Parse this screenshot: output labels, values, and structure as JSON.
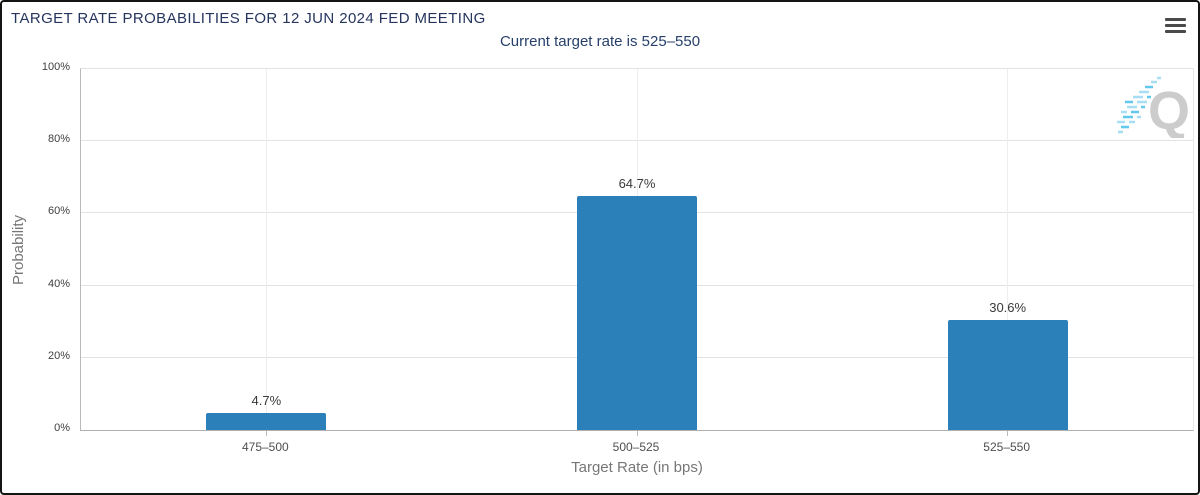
{
  "header": {
    "title": "TARGET RATE PROBABILITIES FOR 12 JUN 2024 FED MEETING",
    "menu_icon": "hamburger-menu"
  },
  "chart_data": {
    "type": "bar",
    "title": "TARGET RATE PROBABILITIES FOR 12 JUN 2024 FED MEETING",
    "subtitle": "Current target rate is 525–550",
    "categories": [
      "475–500",
      "500–525",
      "525–550"
    ],
    "values": [
      4.7,
      64.7,
      30.6
    ],
    "value_labels": [
      "4.7%",
      "64.7%",
      "30.6%"
    ],
    "xlabel": "Target Rate (in bps)",
    "ylabel": "Probability",
    "ylim": [
      0,
      100
    ],
    "yticks": [
      0,
      20,
      40,
      60,
      80,
      100
    ],
    "ytick_labels": [
      "0%",
      "20%",
      "40%",
      "60%",
      "80%",
      "100%"
    ],
    "grid": true,
    "legend_position": "none",
    "bar_color": "#2b80b9",
    "watermark_letter": "Q"
  },
  "colors": {
    "bar": "#2b80b9",
    "title_text": "#25355e",
    "subtitle_text": "#27406b",
    "gridline": "#e3e3e3",
    "axis_line": "#b3b3b3",
    "tick_label": "#3f3f3f",
    "axis_title": "#777777",
    "value_label": "#3a3a3a",
    "watermark_gray": "#c7c7c7",
    "watermark_blue_light": "#a8def4",
    "watermark_blue_dark": "#62c8ee"
  }
}
